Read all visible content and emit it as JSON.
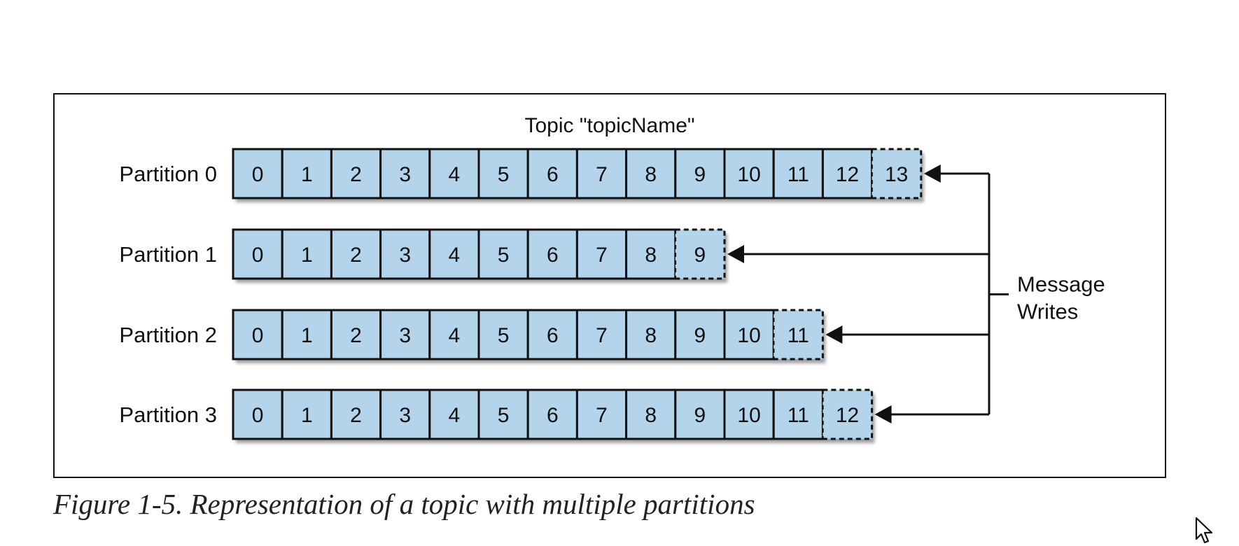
{
  "figure": {
    "title": "Topic \"topicName\"",
    "caption": "Figure 1-5. Representation of a topic with multiple partitions",
    "writer_label_lines": [
      "Message",
      "Writes"
    ],
    "partitions": [
      {
        "label": "Partition 0",
        "offsets": [
          "0",
          "1",
          "2",
          "3",
          "4",
          "5",
          "6",
          "7",
          "8",
          "9",
          "10",
          "11",
          "12",
          "13"
        ],
        "pending_offset": "13"
      },
      {
        "label": "Partition 1",
        "offsets": [
          "0",
          "1",
          "2",
          "3",
          "4",
          "5",
          "6",
          "7",
          "8",
          "9"
        ],
        "pending_offset": "9"
      },
      {
        "label": "Partition 2",
        "offsets": [
          "0",
          "1",
          "2",
          "3",
          "4",
          "5",
          "6",
          "7",
          "8",
          "9",
          "10",
          "11"
        ],
        "pending_offset": "11"
      },
      {
        "label": "Partition 3",
        "offsets": [
          "0",
          "1",
          "2",
          "3",
          "4",
          "5",
          "6",
          "7",
          "8",
          "9",
          "10",
          "11",
          "12"
        ],
        "pending_offset": "12"
      }
    ],
    "colors": {
      "cell_fill": "#b3d4ea",
      "line": "#111111",
      "shadow": "#8a8a8a"
    }
  },
  "cursor": {
    "icon": "arrow-pointer-icon"
  }
}
